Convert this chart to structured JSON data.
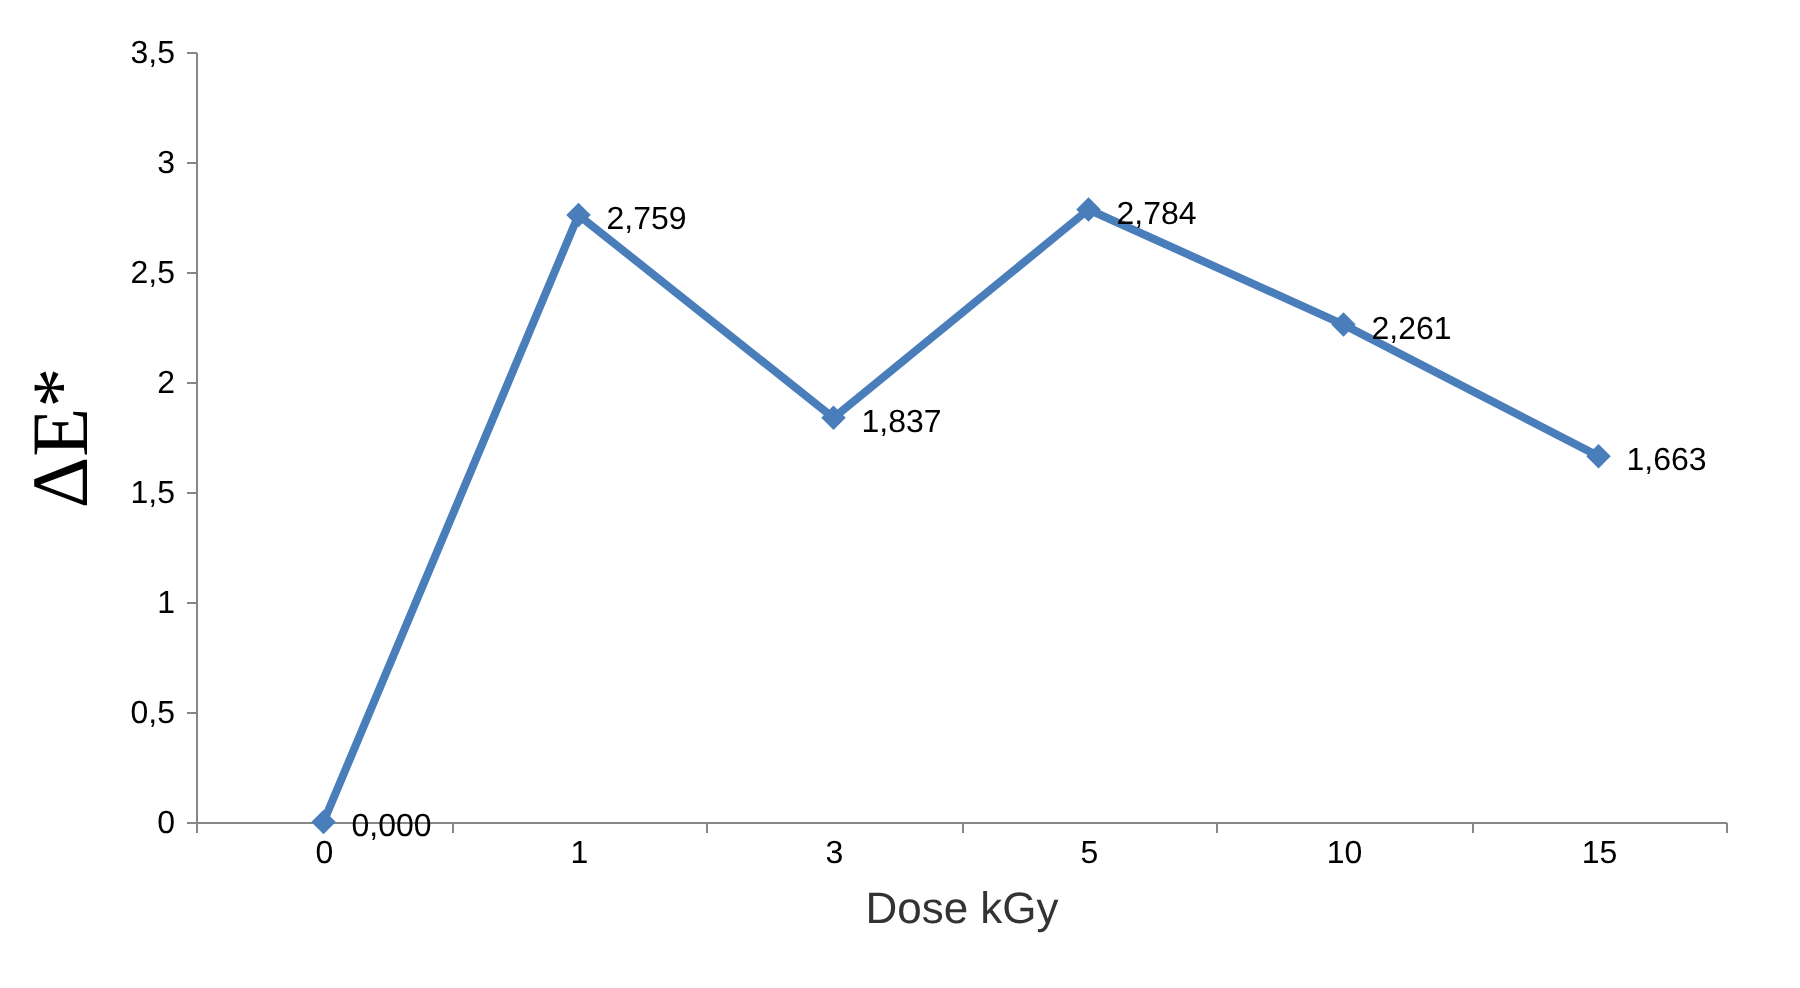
{
  "chart_data": {
    "type": "line",
    "xlabel": "Dose kGy",
    "ylabel": "ΔE*",
    "categories": [
      "0",
      "1",
      "3",
      "5",
      "10",
      "15"
    ],
    "series": [
      {
        "color": "#4a7ebb",
        "values": [
          0,
          2.759,
          1.837,
          2.784,
          2.261,
          1.663
        ],
        "value_labels": [
          "0,000",
          "2,759",
          "1,837",
          "2,784",
          "2,261",
          "1,663"
        ]
      }
    ],
    "ylim": [
      0,
      3.5
    ],
    "yticks": [
      0,
      {
        "value": 0.5,
        "label": "0,5"
      },
      1,
      {
        "value": 1.5,
        "label": "1,5"
      },
      2,
      {
        "value": 2.5,
        "label": "2,5"
      },
      3,
      {
        "value": 3.5,
        "label": "3,5"
      }
    ],
    "marker": "diamond",
    "line_style": "solid"
  }
}
